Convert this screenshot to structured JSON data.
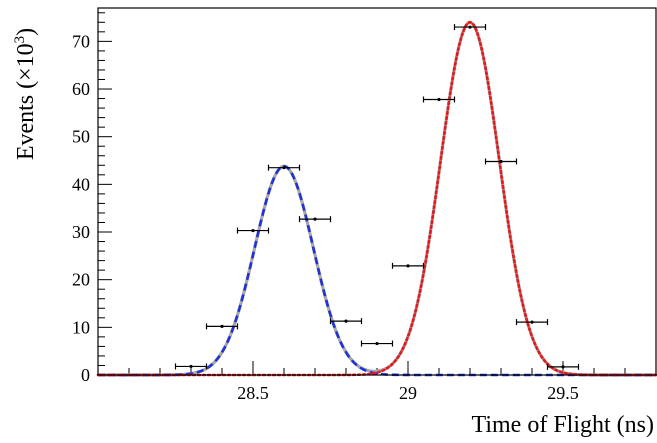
{
  "chart_data": {
    "type": "scatter",
    "xlabel": "Time of Flight (ns)",
    "ylabel_main": "Events (×10",
    "ylabel_exp": "3",
    "ylabel_close": ")",
    "xlim": [
      28.0,
      29.8
    ],
    "ylim": [
      0,
      77
    ],
    "x_ticks": [
      28.5,
      29,
      29.5
    ],
    "x_tick_labels": [
      "28.5",
      "29",
      "29.5"
    ],
    "y_ticks": [
      0,
      10,
      20,
      30,
      40,
      50,
      60,
      70
    ],
    "y_tick_labels": [
      "0",
      "10",
      "20",
      "30",
      "40",
      "50",
      "60",
      "70"
    ],
    "bin_half_width": 0.05,
    "points": [
      {
        "x": 28.3,
        "y": 1.8
      },
      {
        "x": 28.4,
        "y": 10.2
      },
      {
        "x": 28.5,
        "y": 30.3
      },
      {
        "x": 28.6,
        "y": 43.5
      },
      {
        "x": 28.7,
        "y": 32.7
      },
      {
        "x": 28.8,
        "y": 11.3
      },
      {
        "x": 28.9,
        "y": 6.6
      },
      {
        "x": 29.0,
        "y": 22.9
      },
      {
        "x": 29.1,
        "y": 57.8
      },
      {
        "x": 29.2,
        "y": 73.0
      },
      {
        "x": 29.3,
        "y": 44.8
      },
      {
        "x": 29.4,
        "y": 11.1
      },
      {
        "x": 29.5,
        "y": 1.7
      }
    ],
    "components": [
      {
        "style": "dashed",
        "color": "#1f33d6",
        "amplitude": 43.8,
        "mean": 28.6,
        "sigma": 0.095
      },
      {
        "style": "dotted",
        "color": "#e41a1c",
        "amplitude": 74.0,
        "mean": 29.2,
        "sigma": 0.095
      }
    ],
    "total_fit": {
      "color": "#a8a8a8"
    }
  }
}
